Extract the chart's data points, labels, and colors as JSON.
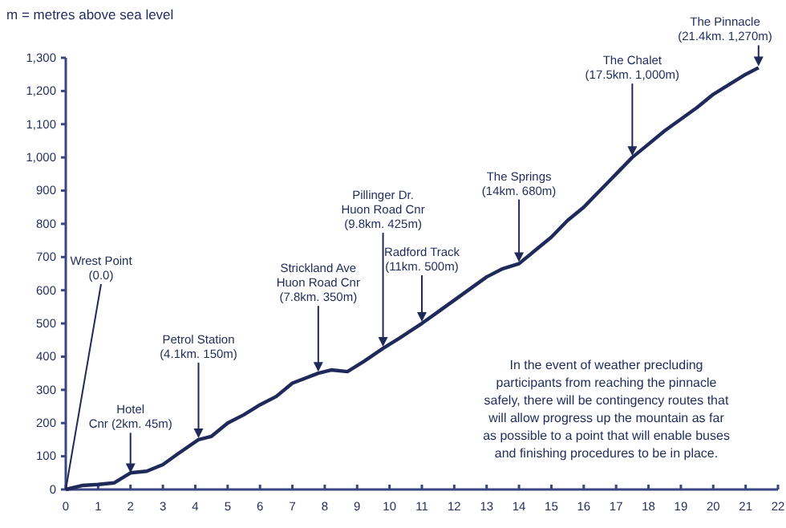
{
  "chart_data": {
    "type": "line",
    "ylabel": "m = metres above sea level",
    "x": [
      0,
      0.5,
      1,
      1.5,
      2,
      2.5,
      3,
      3.5,
      4.1,
      4.5,
      5,
      5.5,
      6,
      6.5,
      7,
      7.8,
      8.2,
      8.7,
      9.2,
      9.8,
      10.3,
      11,
      11.5,
      12,
      12.5,
      13,
      13.5,
      14,
      14.5,
      15,
      15.5,
      16,
      16.5,
      17,
      17.5,
      18,
      18.5,
      19,
      19.5,
      20,
      20.5,
      21,
      21.4
    ],
    "series": [
      {
        "color": "#1f2a5a",
        "values": [
          0,
          12,
          15,
          20,
          50,
          55,
          75,
          110,
          150,
          160,
          200,
          225,
          255,
          280,
          320,
          350,
          360,
          355,
          385,
          425,
          455,
          500,
          535,
          570,
          605,
          640,
          665,
          680,
          720,
          760,
          810,
          850,
          900,
          950,
          1000,
          1040,
          1080,
          1115,
          1150,
          1190,
          1220,
          1250,
          1270
        ]
      }
    ],
    "xlim": [
      0,
      22
    ],
    "xticks": [
      0,
      1,
      2,
      3,
      4,
      5,
      6,
      7,
      8,
      9,
      10,
      11,
      12,
      13,
      14,
      15,
      16,
      17,
      18,
      19,
      20,
      21,
      22
    ],
    "ylim": [
      0,
      1300
    ],
    "yticks": [
      0,
      100,
      200,
      300,
      400,
      500,
      600,
      700,
      800,
      900,
      {
        "value": 1000,
        "label": "1,000"
      },
      {
        "value": 1100,
        "label": "1,100"
      },
      {
        "value": 1200,
        "label": "1,200"
      },
      {
        "value": 1300,
        "label": "1,300"
      }
    ],
    "grid": false,
    "marker": "none",
    "line_style": "solid",
    "annotations": [
      {
        "text": "Wrest Point\n(0.0)",
        "x": 0,
        "y": 0
      },
      {
        "text": "Hotel\nCnr (2km. 45m)",
        "x": 2,
        "y": 45
      },
      {
        "text": "Petrol Station\n(4.1km. 150m)",
        "x": 4.1,
        "y": 150
      },
      {
        "text": "Strickland Ave\nHuon Road Cnr\n(7.8km. 350m)",
        "x": 7.8,
        "y": 350
      },
      {
        "text": "Pillinger Dr.\nHuon Road Cnr\n(9.8km. 425m)",
        "x": 9.8,
        "y": 425
      },
      {
        "text": "Radford Track\n(11km. 500m)",
        "x": 11,
        "y": 500
      },
      {
        "text": "The Springs\n(14km. 680m)",
        "x": 14,
        "y": 680
      },
      {
        "text": "The Chalet\n(17.5km. 1,000m)",
        "x": 17.5,
        "y": 1000
      },
      {
        "text": "The Pinnacle\n(21.4km. 1,270m)",
        "x": 21.4,
        "y": 1270
      },
      "In the event of weather precluding\nparticipants from reaching the pinnacle\nsafely, there will be contingency routes that\nwill allow progress up the mountain as far\nas possible to a point that will enable buses\nand finishing procedures to be in place."
    ]
  }
}
